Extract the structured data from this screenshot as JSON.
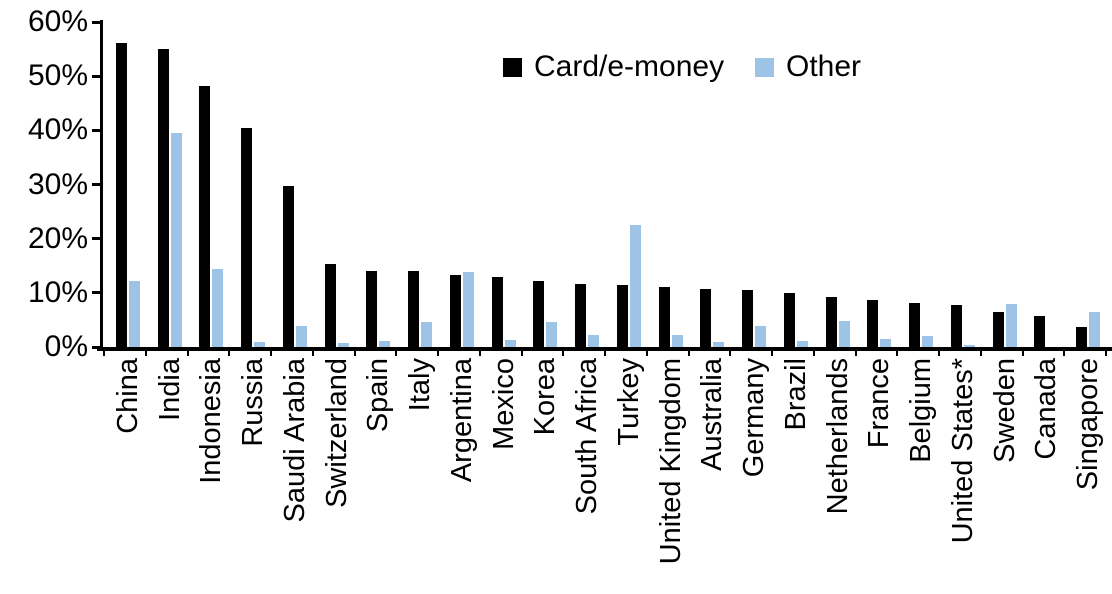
{
  "chart_data": {
    "type": "bar",
    "title": "",
    "xlabel": "",
    "ylabel": "",
    "ylim": [
      0,
      60
    ],
    "yticks": [
      "0%",
      "10%",
      "20%",
      "30%",
      "40%",
      "50%",
      "60%"
    ],
    "grid": false,
    "legend_position": "top-center",
    "categories": [
      "China",
      "India",
      "Indonesia",
      "Russia",
      "Saudi Arabia",
      "Switzerland",
      "Spain",
      "Italy",
      "Argentina",
      "Mexico",
      "Korea",
      "South Africa",
      "Turkey",
      "United Kingdom",
      "Australia",
      "Germany",
      "Brazil",
      "Netherlands",
      "France",
      "Belgium",
      "United States*",
      "Sweden",
      "Canada",
      "Singapore"
    ],
    "series": [
      {
        "name": "Card/e-money",
        "color": "#000000",
        "values": [
          56.2,
          55.0,
          48.2,
          40.5,
          29.8,
          15.4,
          14.1,
          14.0,
          13.3,
          12.9,
          12.1,
          11.6,
          11.5,
          11.0,
          10.7,
          10.5,
          9.9,
          9.2,
          8.6,
          8.1,
          7.8,
          6.5,
          5.8,
          3.7
        ]
      },
      {
        "name": "Other",
        "color": "#9DC3E6",
        "values": [
          12.2,
          39.6,
          14.4,
          1.0,
          3.8,
          0.8,
          1.1,
          4.6,
          13.8,
          1.3,
          4.6,
          2.3,
          22.5,
          2.3,
          1.0,
          3.9,
          1.2,
          4.8,
          1.5,
          2.0,
          0.3,
          8.0,
          0,
          6.5
        ]
      }
    ]
  }
}
